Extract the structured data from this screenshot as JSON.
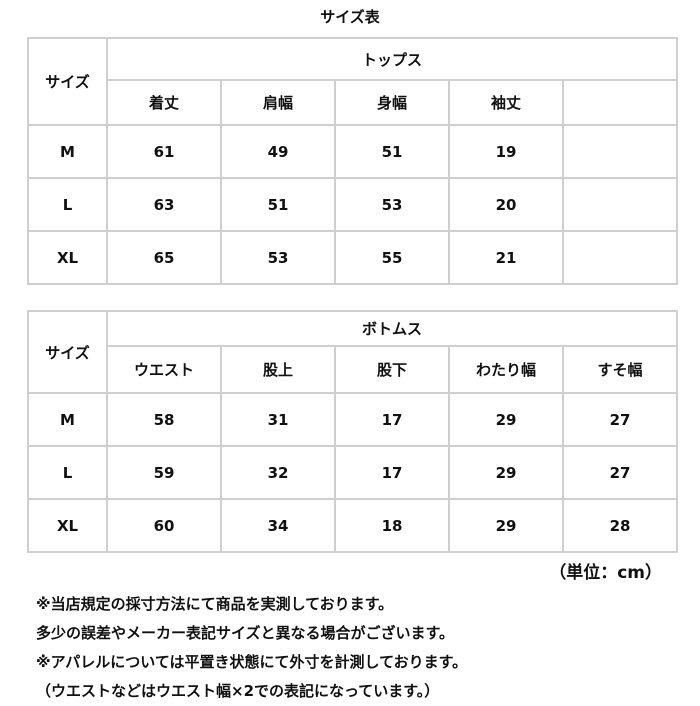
{
  "title": "サイズ表",
  "tops": {
    "size_label": "サイズ",
    "group_label": "トップス",
    "columns": [
      "着丈",
      "肩幅",
      "身幅",
      "袖丈",
      ""
    ],
    "rows": [
      {
        "size": "M",
        "values": [
          "61",
          "49",
          "51",
          "19",
          ""
        ]
      },
      {
        "size": "L",
        "values": [
          "63",
          "51",
          "53",
          "20",
          ""
        ]
      },
      {
        "size": "XL",
        "values": [
          "65",
          "53",
          "55",
          "21",
          ""
        ]
      }
    ]
  },
  "bottoms": {
    "size_label": "サイズ",
    "group_label": "ボトムス",
    "columns": [
      "ウエスト",
      "股上",
      "股下",
      "わたり幅",
      "すそ幅"
    ],
    "rows": [
      {
        "size": "M",
        "values": [
          "58",
          "31",
          "17",
          "29",
          "27"
        ]
      },
      {
        "size": "L",
        "values": [
          "59",
          "32",
          "17",
          "29",
          "27"
        ]
      },
      {
        "size": "XL",
        "values": [
          "60",
          "34",
          "18",
          "29",
          "28"
        ]
      }
    ]
  },
  "unit": "（単位：cm）",
  "notes": [
    "※当店規定の採寸方法にて商品を実測しております。",
    "多少の誤差やメーカー表記サイズと異なる場合がございます。",
    "※アパレルについては平置き状態にて外寸を計測しております。",
    "（ウエストなどはウエスト幅×2での表記になっています。）"
  ]
}
